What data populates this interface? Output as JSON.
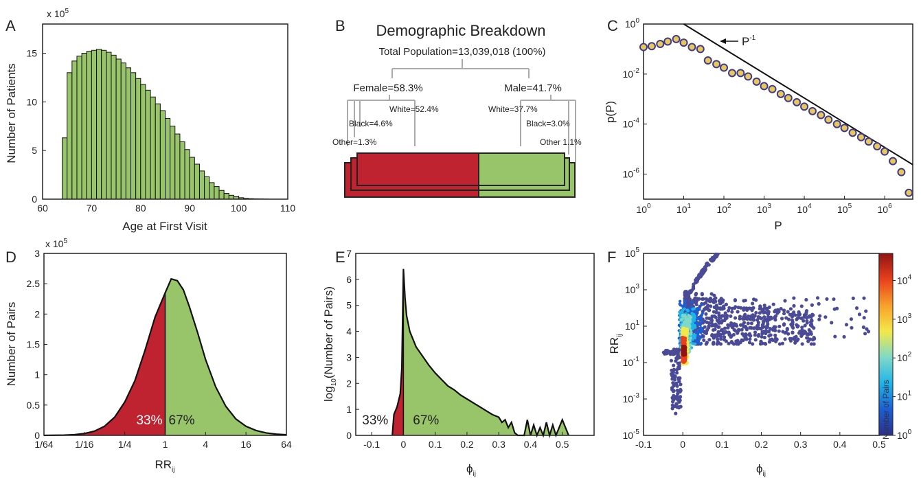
{
  "colors": {
    "green": "#98c46a",
    "red": "#bf2330",
    "marker_face": "#e8c85a",
    "marker_edge": "#3f3a8c",
    "scatter": "#4a4a96"
  },
  "panels": {
    "A": "A",
    "B": "B",
    "C": "C",
    "D": "D",
    "E": "E",
    "F": "F"
  },
  "chart_data": [
    {
      "id": "A",
      "type": "bar",
      "xlabel": "Age at First Visit",
      "ylabel": "Number of Patients",
      "ylabel_multiplier": "x 10",
      "ylabel_multiplier_exp": "5",
      "xlim": [
        60,
        110
      ],
      "ylim": [
        0,
        18
      ],
      "xticks": [
        60,
        70,
        80,
        90,
        100,
        110
      ],
      "yticks": [
        0,
        5,
        10,
        15
      ],
      "x": [
        64,
        65,
        66,
        67,
        68,
        69,
        70,
        71,
        72,
        73,
        74,
        75,
        76,
        77,
        78,
        79,
        80,
        81,
        82,
        83,
        84,
        85,
        86,
        87,
        88,
        89,
        90,
        91,
        92,
        93,
        94,
        95,
        96,
        97,
        98,
        99,
        100,
        101,
        102,
        103,
        104,
        105
      ],
      "values": [
        6.3,
        13.0,
        14.2,
        14.7,
        15.0,
        15.2,
        15.3,
        15.4,
        15.3,
        15.1,
        14.8,
        14.4,
        14.0,
        13.5,
        13.0,
        12.4,
        11.8,
        11.2,
        10.5,
        9.8,
        9.1,
        8.3,
        7.5,
        6.7,
        5.9,
        5.1,
        4.3,
        3.6,
        2.9,
        2.3,
        1.7,
        1.3,
        0.9,
        0.6,
        0.4,
        0.25,
        0.15,
        0.08,
        0.05,
        0.03,
        0.02,
        0.01
      ]
    },
    {
      "id": "B",
      "type": "diagram",
      "title": "Demographic Breakdown",
      "total": "Total Population=13,039,018 (100%)",
      "female": "Female=58.3%",
      "male": "Male=41.7%",
      "female_white": "White=52.4%",
      "female_black": "Black=4.6%",
      "female_other": "Other=1.3%",
      "male_white": "White=37.7%",
      "male_black": "Black=3.0%",
      "male_other": "Other 1.1%",
      "shares": {
        "female": 58.3,
        "male": 41.7,
        "female_white": 52.4,
        "female_black": 4.6,
        "female_other": 1.3,
        "male_white": 37.7,
        "male_black": 3.0,
        "male_other": 1.1
      }
    },
    {
      "id": "C",
      "type": "scatter",
      "xscale": "log",
      "yscale": "log",
      "xlabel": "P",
      "ylabel": "p(P)",
      "xlim": [
        1,
        5000000
      ],
      "ylim": [
        1e-07,
        1
      ],
      "xtick_exponents": [
        0,
        1,
        2,
        3,
        4,
        5,
        6
      ],
      "ytick_exponents": [
        0,
        -2,
        -4,
        -6
      ],
      "tick_base": "10",
      "annotation": "P",
      "annotation_exp": "-1",
      "powerlaw_line": {
        "from": [
          10,
          1
        ],
        "to": [
          5000000,
          2.4e-06
        ]
      },
      "x": [
        1,
        1.6,
        2.6,
        4,
        6.5,
        10,
        16,
        26,
        40,
        65,
        100,
        160,
        260,
        400,
        650,
        1000,
        1600,
        2600,
        4000,
        6500,
        10000,
        16000,
        26000,
        40000,
        65000,
        100000,
        160000,
        260000,
        400000,
        650000,
        1000000,
        1600000,
        2600000,
        4000000
      ],
      "y": [
        0.12,
        0.13,
        0.16,
        0.2,
        0.25,
        0.18,
        0.12,
        0.1,
        0.035,
        0.025,
        0.018,
        0.011,
        0.011,
        0.008,
        0.005,
        0.0033,
        0.0025,
        0.0016,
        0.0011,
        0.00075,
        0.0005,
        0.00033,
        0.00023,
        0.00015,
        0.0001,
        7e-05,
        4.5e-05,
        3e-05,
        2e-05,
        1.3e-05,
        8e-06,
        3.3e-06,
        1.2e-06,
        1.8e-07
      ]
    },
    {
      "id": "D",
      "type": "area",
      "xlabel": "RR",
      "xlabel_sub": "ij",
      "ylabel": "Number of Pairs",
      "ylabel_multiplier": "x 10",
      "ylabel_multiplier_exp": "5",
      "xscale": "log2",
      "xticks": [
        "1/64",
        "1/16",
        "1/4",
        "1",
        "4",
        "16",
        "64"
      ],
      "xlim_log2": [
        -6,
        6
      ],
      "ylim": [
        0,
        3
      ],
      "yticks": [
        "0",
        "0.5",
        "1",
        "1.5",
        "2",
        "2.5",
        "3"
      ],
      "split_at_log2": 0,
      "left_label": "33%",
      "right_label": "67%",
      "x_log2": [
        -6,
        -5,
        -4.5,
        -4,
        -3.5,
        -3,
        -2.5,
        -2,
        -1.5,
        -1,
        -0.5,
        0,
        0.3,
        0.6,
        0.9,
        1.2,
        1.6,
        2,
        2.5,
        3,
        3.5,
        4,
        4.5,
        5,
        5.5,
        6
      ],
      "y": [
        0.0,
        0.005,
        0.012,
        0.03,
        0.07,
        0.15,
        0.3,
        0.55,
        0.9,
        1.4,
        1.95,
        2.35,
        2.58,
        2.55,
        2.4,
        2.12,
        1.7,
        1.25,
        0.8,
        0.48,
        0.27,
        0.15,
        0.08,
        0.04,
        0.02,
        0.01
      ]
    },
    {
      "id": "E",
      "type": "area",
      "xlabel": "ϕ",
      "xlabel_sub": "ij",
      "ylabel": "log",
      "ylabel_sub": "10",
      "ylabel_rest": "(Number of Pairs)",
      "xlim": [
        -0.15,
        0.6
      ],
      "ylim": [
        0,
        7
      ],
      "xticks": [
        "-0.1",
        "0",
        "0.1",
        "0.2",
        "0.3",
        "0.4",
        "0.5"
      ],
      "yticks": [
        "0",
        "1",
        "2",
        "3",
        "4",
        "5",
        "6",
        "7"
      ],
      "split_at": 0,
      "left_label": "33%",
      "right_label": "67%",
      "x": [
        -0.035,
        -0.03,
        -0.02,
        -0.01,
        -0.005,
        0,
        0.005,
        0.01,
        0.02,
        0.04,
        0.06,
        0.08,
        0.1,
        0.12,
        0.14,
        0.16,
        0.18,
        0.2,
        0.22,
        0.24,
        0.26,
        0.28,
        0.3,
        0.31,
        0.32,
        0.33,
        0.34,
        0.35,
        0.36,
        0.38,
        0.39,
        0.4,
        0.41,
        0.42,
        0.43,
        0.44,
        0.45,
        0.46,
        0.47,
        0.48,
        0.49,
        0.5,
        0.51,
        0.52
      ],
      "y": [
        0,
        0.8,
        1.1,
        1.6,
        2.6,
        6.4,
        5.3,
        4.6,
        4.0,
        3.4,
        3.05,
        2.7,
        2.4,
        2.15,
        1.9,
        1.75,
        1.55,
        1.4,
        1.25,
        1.1,
        0.95,
        0.8,
        0.7,
        0.5,
        0.6,
        0.3,
        0.5,
        0.1,
        0,
        0,
        0.6,
        0,
        0.4,
        0,
        0.3,
        0,
        0.5,
        0,
        0.4,
        0,
        0.3,
        0.6,
        0.3,
        0
      ]
    },
    {
      "id": "F",
      "type": "heatmap",
      "xlabel": "ϕ",
      "xlabel_sub": "ij",
      "ylabel": "RR",
      "ylabel_sub": "ij",
      "xlim": [
        -0.1,
        0.5
      ],
      "ylim_log10": [
        -5,
        5
      ],
      "xticks": [
        "-0.1",
        "0",
        "0.1",
        "0.2",
        "0.3",
        "0.4",
        "0.5"
      ],
      "ytick_exponents": [
        -5,
        -3,
        -1,
        1,
        3,
        5
      ],
      "tick_base": "10",
      "colorbar_label": "Number of Pairs",
      "colorbar_tick_exponents": [
        0,
        1,
        2,
        3,
        4
      ],
      "colormap": [
        "#2b2f8c",
        "#1a5fd6",
        "#1fb4e8",
        "#7fd9c8",
        "#f2e84a",
        "#f7a12a",
        "#e8401c",
        "#8e1414"
      ]
    }
  ]
}
